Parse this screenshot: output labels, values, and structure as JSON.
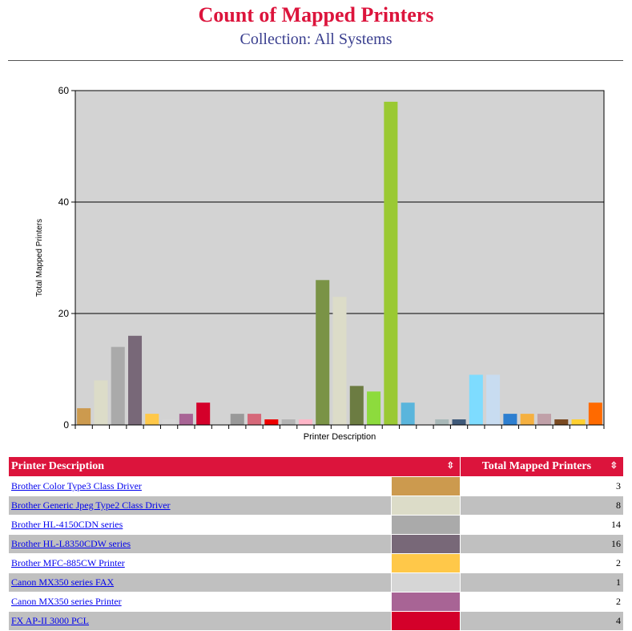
{
  "header": {
    "title": "Count of Mapped Printers",
    "subtitle": "Collection: All Systems"
  },
  "chart_data": {
    "type": "bar",
    "xlabel": "Printer Description",
    "ylabel": "Total Mapped Printers",
    "ylim": [
      0,
      60
    ],
    "yticks": [
      0,
      20,
      40,
      60
    ],
    "grid": true,
    "values": [
      3,
      8,
      14,
      16,
      2,
      1,
      2,
      4,
      0,
      2,
      2,
      1,
      1,
      1,
      26,
      23,
      7,
      6,
      58,
      4,
      0,
      1,
      1,
      9,
      9,
      2,
      2,
      2,
      1,
      1,
      4
    ],
    "colors": [
      "#cc9a4e",
      "#dcdcc8",
      "#aaaaaa",
      "#786878",
      "#ffc849",
      "#d6d6d6",
      "#a86495",
      "#d4002a",
      "#d3d3d3",
      "#999999",
      "#d66879",
      "#ee0000",
      "#b3b3b3",
      "#ffb6c8",
      "#7a9346",
      "#dcdcc8",
      "#6c7c42",
      "#8ddb3d",
      "#9ac933",
      "#5ab5dc",
      "#a8c8d4",
      "#a8b8b8",
      "#3f5a7a",
      "#7edcff",
      "#c8dcf0",
      "#2e7fd0",
      "#f5b040",
      "#c0a0a8",
      "#7a4a22",
      "#ffd030",
      "#ff6a00"
    ]
  },
  "table": {
    "col_desc": "Printer Description",
    "col_total": "Total Mapped Printers",
    "sort_glyph": "⇳",
    "rows": [
      {
        "name": "Brother Color Type3 Class Driver",
        "color": "#cc9a4e",
        "value": "3"
      },
      {
        "name": "Brother Generic Jpeg Type2 Class Driver",
        "color": "#dcdcc8",
        "value": "8"
      },
      {
        "name": "Brother HL-4150CDN series",
        "color": "#aaaaaa",
        "value": "14"
      },
      {
        "name": "Brother HL-L8350CDW series",
        "color": "#786878",
        "value": "16"
      },
      {
        "name": "Brother MFC-885CW Printer",
        "color": "#ffc849",
        "value": "2"
      },
      {
        "name": "Canon MX350 series FAX",
        "color": "#d6d6d6",
        "value": "1"
      },
      {
        "name": "Canon MX350 series Printer",
        "color": "#a86495",
        "value": "2"
      },
      {
        "name": "FX AP-II 3000 PCL",
        "color": "#d4002a",
        "value": "4"
      }
    ]
  }
}
